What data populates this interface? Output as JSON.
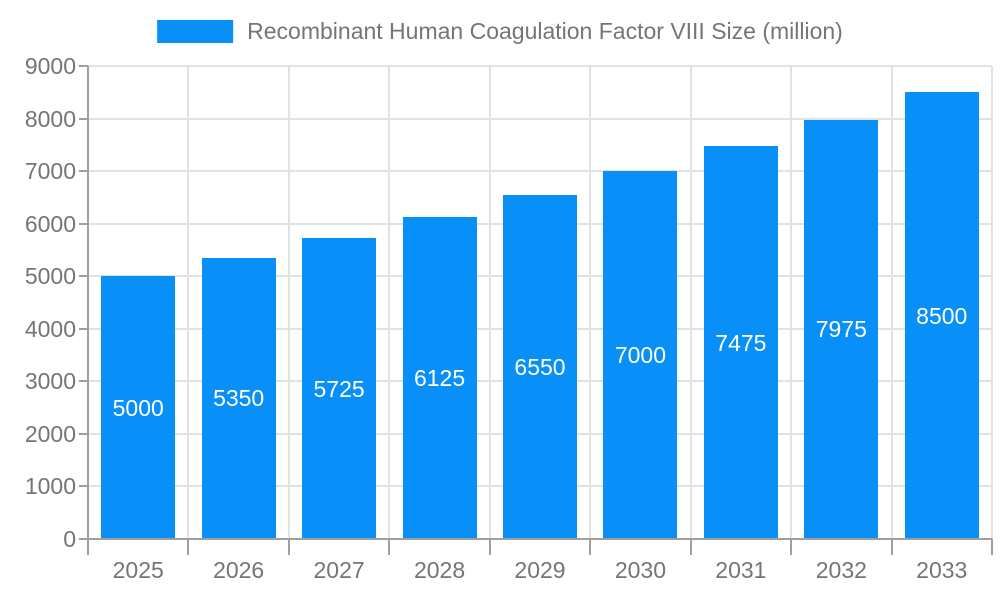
{
  "chart_data": {
    "type": "bar",
    "title": "Recombinant Human Coagulation Factor VIII Size (million)",
    "legend_entries": [
      "Recombinant Human Coagulation Factor VIII Size (million)"
    ],
    "legend_position": "top-center",
    "categories": [
      "2025",
      "2026",
      "2027",
      "2028",
      "2029",
      "2030",
      "2031",
      "2032",
      "2033"
    ],
    "series": [
      {
        "name": "Recombinant Human Coagulation Factor VIII Size (million)",
        "values": [
          5000,
          5350,
          5725,
          6125,
          6550,
          7000,
          7475,
          7975,
          8500
        ]
      }
    ],
    "values": [
      5000,
      5350,
      5725,
      6125,
      6550,
      7000,
      7475,
      7975,
      8500
    ],
    "value_labels_shown": true,
    "value_label_position": "inside-center",
    "xlabel": "",
    "ylabel": "",
    "ylim": [
      0,
      9000
    ],
    "yticks": [
      0,
      1000,
      2000,
      3000,
      4000,
      5000,
      6000,
      7000,
      8000,
      9000
    ],
    "grid": true,
    "colors": {
      "bar": "#0890f8",
      "value_label": "#ffffff",
      "axis_text": "#757575",
      "gridline": "#e2e2e2",
      "axis_line": "#9f9f9f",
      "background": "#ffffff"
    }
  }
}
